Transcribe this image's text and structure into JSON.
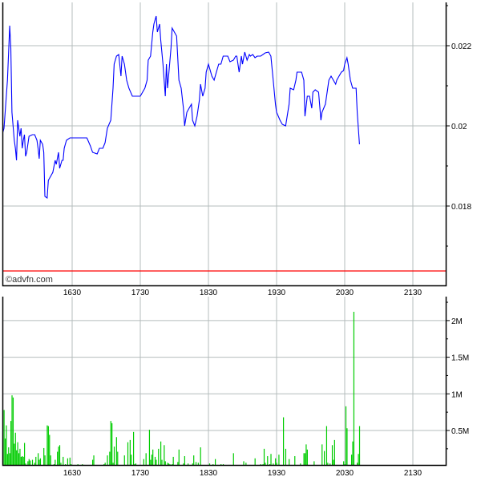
{
  "watermark": "©advfn.com",
  "chart_data": [
    {
      "type": "line",
      "title": "",
      "xlabel": "",
      "ylabel": "",
      "x_ticks": [
        "1630",
        "1730",
        "1830",
        "1930",
        "2030",
        "2130"
      ],
      "y_ticks": [
        "0.022",
        "0.02",
        "0.018"
      ],
      "ylim": [
        0.01604,
        0.02308
      ],
      "xlim": [
        "15:28",
        "21:58"
      ],
      "grid": true,
      "line_color": "#0000ff",
      "reference_line": {
        "value": 0.01638,
        "color": "#ff0000"
      },
      "x": [
        "15:29",
        "15:30",
        "15:33",
        "15:35",
        "15:36",
        "15:37",
        "15:39",
        "15:40",
        "15:41",
        "15:42",
        "15:44",
        "15:45",
        "15:46",
        "15:47",
        "15:48",
        "15:49",
        "15:50",
        "15:52",
        "15:55",
        "15:57",
        "15:59",
        "16:00",
        "16:01",
        "16:02",
        "16:04",
        "16:05",
        "16:06",
        "16:08",
        "16:09",
        "16:11",
        "16:13",
        "16:15",
        "16:16",
        "16:18",
        "16:19",
        "16:21",
        "16:22",
        "16:23",
        "16:25",
        "16:28",
        "16:30",
        "16:34",
        "16:37",
        "16:43",
        "16:46",
        "16:48",
        "16:52",
        "16:54",
        "16:57",
        "16:59",
        "17:01",
        "17:04",
        "17:06",
        "17:07",
        "17:09",
        "17:11",
        "17:13",
        "17:14",
        "17:16",
        "17:18",
        "17:20",
        "17:23",
        "17:27",
        "17:30",
        "17:34",
        "17:36",
        "17:37",
        "17:39",
        "17:41",
        "17:42",
        "17:44",
        "17:45",
        "17:47",
        "17:48",
        "17:50",
        "17:52",
        "17:53",
        "17:54",
        "17:57",
        "17:58",
        "18:00",
        "18:02",
        "18:04",
        "18:06",
        "18:08",
        "18:09",
        "18:11",
        "18:13",
        "18:15",
        "18:16",
        "18:18",
        "18:20",
        "18:22",
        "18:23",
        "18:25",
        "18:27",
        "18:28",
        "18:30",
        "18:33",
        "18:35",
        "18:37",
        "18:39",
        "18:41",
        "18:43",
        "18:47",
        "18:49",
        "18:52",
        "18:54",
        "18:55",
        "18:57",
        "18:59",
        "19:00",
        "19:02",
        "19:04",
        "19:06",
        "19:07",
        "19:09",
        "19:11",
        "19:13",
        "19:16",
        "19:20",
        "19:23",
        "19:25",
        "19:27",
        "19:29",
        "19:30",
        "19:33",
        "19:35",
        "19:38",
        "19:41",
        "19:42",
        "19:45",
        "19:47",
        "19:48",
        "19:52",
        "19:54",
        "19:55",
        "19:57",
        "19:59",
        "20:01",
        "20:02",
        "20:04",
        "20:07",
        "20:09",
        "20:10",
        "20:13",
        "20:15",
        "20:16",
        "20:18",
        "20:22",
        "20:23",
        "20:25",
        "20:27",
        "20:29",
        "20:30",
        "20:32",
        "20:33",
        "20:35",
        "20:37",
        "20:40",
        "20:41",
        "20:43"
      ],
      "y": [
        0.01984,
        0.01994,
        0.02114,
        0.0225,
        0.02194,
        0.02034,
        0.01964,
        0.01944,
        0.01914,
        0.02014,
        0.01974,
        0.01994,
        0.01944,
        0.01964,
        0.01978,
        0.01924,
        0.01934,
        0.01974,
        0.01978,
        0.01978,
        0.01964,
        0.01944,
        0.01918,
        0.01964,
        0.01954,
        0.01934,
        0.01824,
        0.0182,
        0.01864,
        0.01874,
        0.01884,
        0.01914,
        0.01904,
        0.01934,
        0.01894,
        0.01914,
        0.01914,
        0.01944,
        0.01964,
        0.0197,
        0.0197,
        0.0197,
        0.0197,
        0.0197,
        0.0195,
        0.01934,
        0.0193,
        0.01944,
        0.01944,
        0.01958,
        0.01994,
        0.02014,
        0.02094,
        0.02154,
        0.02174,
        0.02178,
        0.02124,
        0.02174,
        0.02154,
        0.02114,
        0.02094,
        0.02074,
        0.02074,
        0.02074,
        0.02094,
        0.02114,
        0.02164,
        0.02174,
        0.02234,
        0.02254,
        0.02274,
        0.02234,
        0.02254,
        0.02214,
        0.02154,
        0.02074,
        0.02154,
        0.02094,
        0.02194,
        0.02244,
        0.02234,
        0.02224,
        0.02114,
        0.02094,
        0.02044,
        0.02,
        0.02034,
        0.02044,
        0.02054,
        0.02014,
        0.02,
        0.02024,
        0.02064,
        0.02104,
        0.02074,
        0.02094,
        0.02134,
        0.02154,
        0.02124,
        0.02114,
        0.02134,
        0.02154,
        0.02154,
        0.02174,
        0.02174,
        0.0216,
        0.02164,
        0.02174,
        0.02174,
        0.02134,
        0.02174,
        0.02154,
        0.02184,
        0.02164,
        0.02178,
        0.02174,
        0.02178,
        0.0217,
        0.02174,
        0.02174,
        0.02182,
        0.02184,
        0.02174,
        0.02114,
        0.02054,
        0.02034,
        0.02014,
        0.02004,
        0.02,
        0.02054,
        0.02094,
        0.0209,
        0.02114,
        0.02134,
        0.02134,
        0.02114,
        0.02024,
        0.02074,
        0.02074,
        0.02044,
        0.02084,
        0.0209,
        0.02084,
        0.02014,
        0.02034,
        0.02054,
        0.02094,
        0.02114,
        0.02124,
        0.02104,
        0.02114,
        0.02124,
        0.02134,
        0.02138,
        0.02154,
        0.0217,
        0.02154,
        0.02114,
        0.02094,
        0.02094,
        0.02034,
        0.01954
      ]
    },
    {
      "type": "bar",
      "title": "",
      "xlabel": "",
      "ylabel": "",
      "x_ticks": [
        "1630",
        "1730",
        "1830",
        "1930",
        "2030",
        "2130"
      ],
      "y_ticks": [
        "2M",
        "1.5M",
        "1M",
        "0.5M"
      ],
      "ylim": [
        0,
        2300000
      ],
      "grid": true,
      "bar_color": "#00cc00",
      "x": [
        "15:30",
        "15:31",
        "15:32",
        "15:33",
        "15:34",
        "15:35",
        "15:36",
        "15:37",
        "15:38",
        "15:39",
        "15:40",
        "15:41",
        "15:42",
        "15:43",
        "15:44",
        "15:45",
        "15:46",
        "15:47",
        "15:48",
        "15:49",
        "15:51",
        "15:52",
        "15:53",
        "15:55",
        "15:57",
        "15:58",
        "16:00",
        "16:01",
        "16:02",
        "16:05",
        "16:06",
        "16:08",
        "16:09",
        "16:10",
        "16:11",
        "16:14",
        "16:15",
        "16:17",
        "16:18",
        "16:19",
        "16:20",
        "16:22",
        "16:24",
        "16:26",
        "16:28",
        "16:29",
        "16:32",
        "16:35",
        "16:39",
        "16:41",
        "16:46",
        "16:48",
        "16:49",
        "16:58",
        "16:59",
        "17:01",
        "17:03",
        "17:04",
        "17:05",
        "17:06",
        "17:07",
        "17:09",
        "17:10",
        "17:13",
        "17:16",
        "17:19",
        "17:21",
        "17:22",
        "17:24",
        "17:25",
        "17:26",
        "17:33",
        "17:35",
        "17:38",
        "17:39",
        "17:40",
        "17:41",
        "17:43",
        "17:44",
        "17:46",
        "17:48",
        "17:49",
        "17:51",
        "17:52",
        "17:54",
        "17:55",
        "17:56",
        "17:58",
        "17:59",
        "18:01",
        "18:03",
        "18:04",
        "18:08",
        "18:09",
        "18:12",
        "18:14",
        "18:16",
        "18:17",
        "18:19",
        "18:21",
        "18:23",
        "18:26",
        "18:31",
        "18:34",
        "18:36",
        "18:38",
        "18:41",
        "18:43",
        "18:48",
        "18:49",
        "18:52",
        "19:01",
        "19:03",
        "19:06",
        "19:07",
        "19:11",
        "19:16",
        "19:18",
        "19:19",
        "19:20",
        "19:22",
        "19:24",
        "19:25",
        "19:27",
        "19:29",
        "19:30",
        "19:32",
        "19:36",
        "19:38",
        "19:41",
        "19:43",
        "19:46",
        "19:48",
        "19:51",
        "19:54",
        "19:55",
        "19:56",
        "19:57",
        "19:58",
        "20:03",
        "20:10",
        "20:12",
        "20:14",
        "20:15",
        "20:17",
        "20:19",
        "20:20",
        "20:21",
        "20:23",
        "20:29",
        "20:30",
        "20:31",
        "20:32",
        "20:33",
        "20:35",
        "20:36",
        "20:37",
        "20:38",
        "20:41",
        "20:42",
        "20:43"
      ],
      "values": [
        780000,
        390000,
        570000,
        180000,
        270000,
        190000,
        630000,
        980000,
        950000,
        320000,
        470000,
        230000,
        340000,
        190000,
        250000,
        140000,
        150000,
        140000,
        330000,
        50000,
        80000,
        110000,
        90000,
        100000,
        60000,
        140000,
        190000,
        100000,
        120000,
        260000,
        160000,
        570000,
        560000,
        440000,
        160000,
        40000,
        100000,
        210000,
        280000,
        300000,
        60000,
        140000,
        40000,
        120000,
        130000,
        40000,
        30000,
        40000,
        40000,
        30000,
        30000,
        100000,
        160000,
        40000,
        60000,
        160000,
        210000,
        630000,
        600000,
        60000,
        280000,
        410000,
        210000,
        30000,
        160000,
        340000,
        370000,
        170000,
        480000,
        40000,
        50000,
        110000,
        190000,
        510000,
        100000,
        170000,
        240000,
        140000,
        100000,
        250000,
        350000,
        100000,
        300000,
        80000,
        60000,
        50000,
        40000,
        40000,
        140000,
        30000,
        70000,
        240000,
        50000,
        150000,
        50000,
        30000,
        50000,
        160000,
        70000,
        60000,
        270000,
        30000,
        50000,
        40000,
        110000,
        30000,
        40000,
        40000,
        30000,
        30000,
        190000,
        80000,
        60000,
        30000,
        30000,
        120000,
        40000,
        40000,
        250000,
        60000,
        150000,
        40000,
        180000,
        50000,
        120000,
        60000,
        170000,
        680000,
        250000,
        110000,
        30000,
        150000,
        30000,
        50000,
        190000,
        190000,
        310000,
        240000,
        30000,
        80000,
        310000,
        220000,
        560000,
        60000,
        50000,
        300000,
        100000,
        370000,
        30000,
        80000,
        40000,
        830000,
        530000,
        30000,
        30000,
        170000,
        350000,
        2120000,
        60000,
        180000,
        560000
      ]
    }
  ]
}
